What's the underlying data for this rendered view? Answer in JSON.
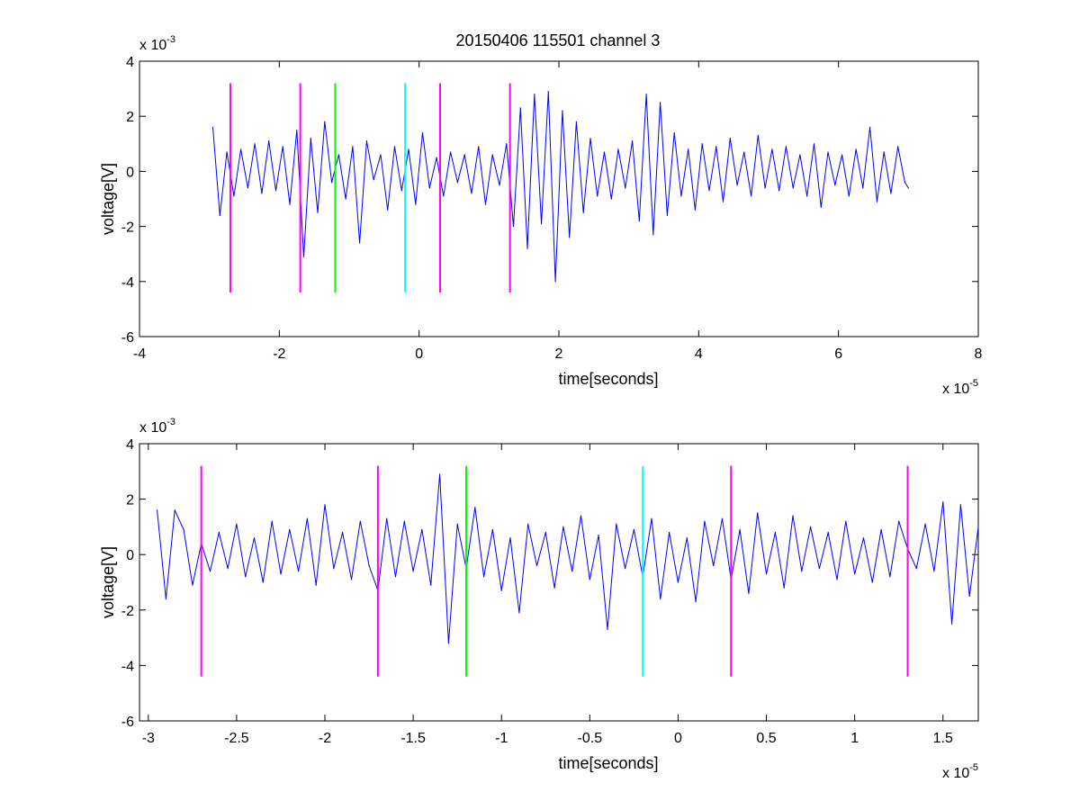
{
  "figure": {
    "title": "20150406 115501 channel 3"
  },
  "colors": {
    "signal": "#0000ff",
    "marker_magenta": "#ff00ff",
    "marker_green": "#00ff00",
    "marker_cyan": "#00ffff",
    "axes": "#000000",
    "background": "#ffffff"
  },
  "chart_data": [
    {
      "type": "line",
      "title": "20150406 115501 channel 3",
      "xlabel": "time[seconds]",
      "ylabel": "voltage[V]",
      "x_multiplier": "x 10",
      "x_multiplier_exp": "-5",
      "y_multiplier": "x 10",
      "y_multiplier_exp": "-3",
      "xlim": [
        -4,
        8
      ],
      "ylim": [
        -6,
        4
      ],
      "xticks": [
        -4,
        -2,
        0,
        2,
        4,
        6,
        8
      ],
      "xtick_labels": [
        "-4",
        "-2",
        "0",
        "2",
        "4",
        "6",
        "8"
      ],
      "yticks": [
        -6,
        -4,
        -2,
        0,
        2,
        4
      ],
      "ytick_labels": [
        "-6",
        "-4",
        "-2",
        "0",
        "2",
        "4"
      ],
      "grid": false,
      "series": [
        {
          "color": "#0000ff",
          "x": [
            -2.95,
            -2.85,
            -2.75,
            -2.65,
            -2.55,
            -2.45,
            -2.35,
            -2.25,
            -2.15,
            -2.05,
            -1.95,
            -1.85,
            -1.75,
            -1.65,
            -1.55,
            -1.45,
            -1.35,
            -1.25,
            -1.15,
            -1.05,
            -0.95,
            -0.85,
            -0.75,
            -0.65,
            -0.55,
            -0.45,
            -0.35,
            -0.25,
            -0.15,
            -0.05,
            0.05,
            0.15,
            0.25,
            0.35,
            0.45,
            0.55,
            0.65,
            0.75,
            0.85,
            0.95,
            1.05,
            1.15,
            1.25,
            1.35,
            1.45,
            1.55,
            1.65,
            1.75,
            1.85,
            1.95,
            2.05,
            2.15,
            2.25,
            2.35,
            2.45,
            2.55,
            2.65,
            2.75,
            2.85,
            2.95,
            3.05,
            3.15,
            3.25,
            3.35,
            3.45,
            3.55,
            3.65,
            3.75,
            3.85,
            3.95,
            4.05,
            4.15,
            4.25,
            4.35,
            4.45,
            4.55,
            4.65,
            4.75,
            4.85,
            4.95,
            5.05,
            5.15,
            5.25,
            5.35,
            5.45,
            5.55,
            5.65,
            5.75,
            5.85,
            5.95,
            6.05,
            6.15,
            6.25,
            6.35,
            6.45,
            6.55,
            6.65,
            6.75,
            6.85,
            6.95,
            7.0
          ],
          "y": [
            1.6,
            -1.6,
            0.7,
            -0.9,
            0.8,
            -0.6,
            1.0,
            -0.8,
            1.1,
            -0.7,
            0.9,
            -1.2,
            1.5,
            -3.1,
            1.2,
            -1.5,
            1.8,
            -0.4,
            0.6,
            -1.0,
            0.9,
            -2.6,
            1.1,
            -0.3,
            0.6,
            -1.4,
            0.9,
            -0.7,
            0.8,
            -1.2,
            1.4,
            -0.6,
            0.5,
            -0.9,
            0.7,
            -0.4,
            0.6,
            -0.8,
            0.9,
            -1.2,
            0.6,
            -0.5,
            1.0,
            -2.0,
            2.3,
            -2.8,
            2.8,
            -1.9,
            2.9,
            -4.0,
            2.2,
            -2.4,
            1.8,
            -1.5,
            1.2,
            -0.9,
            0.7,
            -1.0,
            0.8,
            -0.6,
            1.1,
            -1.8,
            2.8,
            -2.3,
            2.5,
            -1.6,
            1.4,
            -0.9,
            0.8,
            -1.4,
            1.0,
            -0.7,
            0.9,
            -1.1,
            1.2,
            -0.5,
            0.7,
            -0.9,
            1.3,
            -0.6,
            0.8,
            -0.7,
            0.9,
            -0.6,
            0.6,
            -0.9,
            1.0,
            -1.3,
            0.7,
            -0.5,
            0.6,
            -0.9,
            0.8,
            -0.6,
            1.6,
            -1.1,
            0.7,
            -0.8,
            0.9,
            -0.4,
            -0.6
          ]
        }
      ],
      "markers": [
        {
          "x": -2.7,
          "color": "#ff00ff",
          "ymin": -4.4,
          "ymax": 3.2
        },
        {
          "x": -1.7,
          "color": "#ff00ff",
          "ymin": -4.4,
          "ymax": 3.2
        },
        {
          "x": -1.2,
          "color": "#00ff00",
          "ymin": -4.4,
          "ymax": 3.2
        },
        {
          "x": -0.2,
          "color": "#00ffff",
          "ymin": -4.4,
          "ymax": 3.2
        },
        {
          "x": 0.3,
          "color": "#ff00ff",
          "ymin": -4.4,
          "ymax": 3.2
        },
        {
          "x": 1.3,
          "color": "#ff00ff",
          "ymin": -4.4,
          "ymax": 3.2
        }
      ]
    },
    {
      "type": "line",
      "title": "",
      "xlabel": "time[seconds]",
      "ylabel": "voltage[V]",
      "x_multiplier": "x 10",
      "x_multiplier_exp": "-5",
      "y_multiplier": "x 10",
      "y_multiplier_exp": "-3",
      "xlim": [
        -3.05,
        1.7
      ],
      "ylim": [
        -6,
        4
      ],
      "xticks": [
        -3,
        -2.5,
        -2,
        -1.5,
        -1,
        -0.5,
        0,
        0.5,
        1,
        1.5
      ],
      "xtick_labels": [
        "-3",
        "-2.5",
        "-2",
        "-1.5",
        "-1",
        "-0.5",
        "0",
        "0.5",
        "1",
        "1.5"
      ],
      "yticks": [
        -6,
        -4,
        -2,
        0,
        2,
        4
      ],
      "ytick_labels": [
        "-6",
        "-4",
        "-2",
        "0",
        "2",
        "4"
      ],
      "grid": false,
      "series": [
        {
          "color": "#0000ff",
          "x": [
            -2.95,
            -2.9,
            -2.85,
            -2.8,
            -2.75,
            -2.7,
            -2.65,
            -2.6,
            -2.55,
            -2.5,
            -2.45,
            -2.4,
            -2.35,
            -2.3,
            -2.25,
            -2.2,
            -2.15,
            -2.1,
            -2.05,
            -2.0,
            -1.95,
            -1.9,
            -1.85,
            -1.8,
            -1.75,
            -1.7,
            -1.65,
            -1.6,
            -1.55,
            -1.5,
            -1.45,
            -1.4,
            -1.35,
            -1.3,
            -1.25,
            -1.2,
            -1.15,
            -1.1,
            -1.05,
            -1.0,
            -0.95,
            -0.9,
            -0.85,
            -0.8,
            -0.75,
            -0.7,
            -0.65,
            -0.6,
            -0.55,
            -0.5,
            -0.45,
            -0.4,
            -0.35,
            -0.3,
            -0.25,
            -0.2,
            -0.15,
            -0.1,
            -0.05,
            0.0,
            0.05,
            0.1,
            0.15,
            0.2,
            0.25,
            0.3,
            0.35,
            0.4,
            0.45,
            0.5,
            0.55,
            0.6,
            0.65,
            0.7,
            0.75,
            0.8,
            0.85,
            0.9,
            0.95,
            1.0,
            1.05,
            1.1,
            1.15,
            1.2,
            1.25,
            1.3,
            1.35,
            1.4,
            1.45,
            1.5,
            1.55,
            1.6,
            1.65,
            1.7
          ],
          "y": [
            1.6,
            -1.6,
            1.6,
            0.9,
            -1.1,
            0.4,
            -0.6,
            0.8,
            -0.5,
            1.1,
            -0.8,
            0.6,
            -1.0,
            1.2,
            -0.7,
            0.9,
            -0.6,
            1.3,
            -1.1,
            1.8,
            -0.5,
            0.8,
            -0.9,
            1.2,
            -0.4,
            -1.3,
            1.3,
            -0.8,
            1.2,
            -0.6,
            0.9,
            -1.1,
            2.9,
            -3.2,
            1.1,
            -0.5,
            1.7,
            -0.8,
            0.9,
            -1.3,
            0.6,
            -2.1,
            1.1,
            -0.4,
            0.8,
            -1.2,
            1.0,
            -0.6,
            1.4,
            -0.9,
            0.7,
            -2.7,
            1.1,
            -0.5,
            0.9,
            -0.8,
            1.3,
            -1.6,
            0.8,
            -1.0,
            0.6,
            -1.7,
            1.2,
            -0.4,
            1.3,
            -0.9,
            0.9,
            -1.4,
            1.5,
            -0.7,
            0.8,
            -1.2,
            1.4,
            -0.6,
            1.0,
            -0.5,
            0.8,
            -0.9,
            1.2,
            -0.7,
            0.6,
            -1.0,
            0.9,
            -0.8,
            1.2,
            0.2,
            -0.5,
            1.1,
            -0.6,
            1.9,
            -2.5,
            1.8,
            -1.5,
            1.0
          ]
        }
      ],
      "markers": [
        {
          "x": -2.7,
          "color": "#ff00ff",
          "ymin": -4.4,
          "ymax": 3.2
        },
        {
          "x": -1.7,
          "color": "#ff00ff",
          "ymin": -4.4,
          "ymax": 3.2
        },
        {
          "x": -1.2,
          "color": "#00ff00",
          "ymin": -4.4,
          "ymax": 3.2
        },
        {
          "x": -0.2,
          "color": "#00ffff",
          "ymin": -4.4,
          "ymax": 3.2
        },
        {
          "x": 0.3,
          "color": "#ff00ff",
          "ymin": -4.4,
          "ymax": 3.2
        },
        {
          "x": 1.3,
          "color": "#ff00ff",
          "ymin": -4.4,
          "ymax": 3.2
        }
      ]
    }
  ]
}
